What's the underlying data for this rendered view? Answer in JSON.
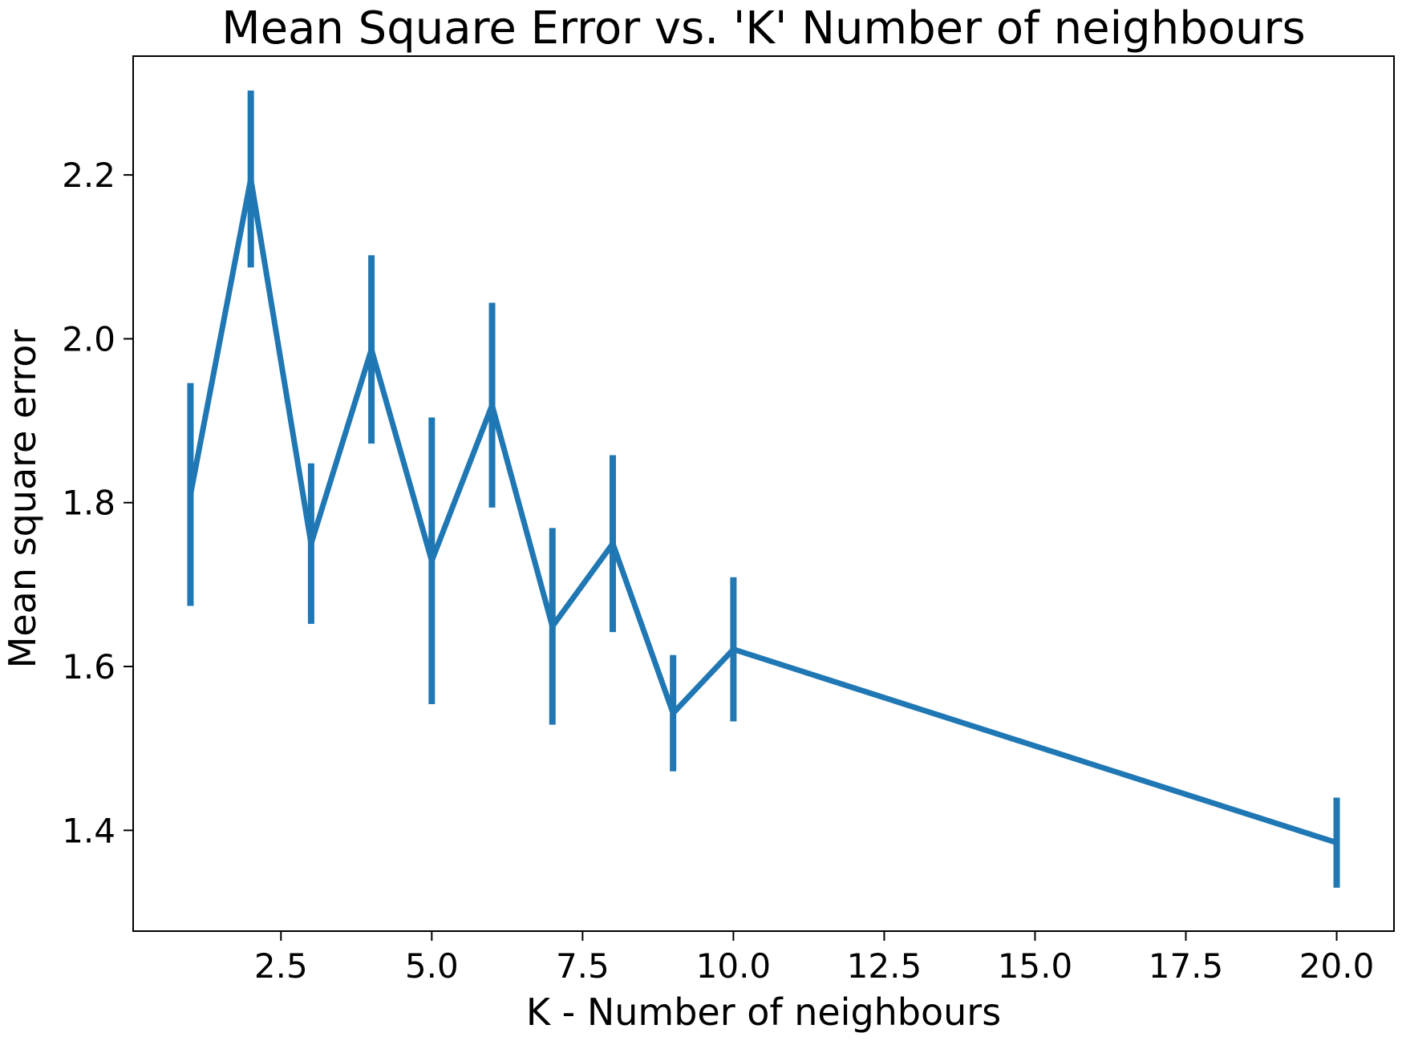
{
  "chart_data": {
    "type": "line",
    "title": "Mean Square Error vs. 'K' Number of neighbours",
    "xlabel": "K - Number of neighbours",
    "ylabel": "Mean square error",
    "xlim": [
      0.05,
      20.95
    ],
    "ylim": [
      1.277,
      2.345
    ],
    "xticks": [
      2.5,
      5.0,
      7.5,
      10.0,
      12.5,
      15.0,
      17.5,
      20.0
    ],
    "xtick_labels": [
      "2.5",
      "5.0",
      "7.5",
      "10.0",
      "12.5",
      "15.0",
      "17.5",
      "20.0"
    ],
    "yticks": [
      1.4,
      1.6,
      1.8,
      2.0,
      2.2
    ],
    "ytick_labels": [
      "1.4",
      "1.6",
      "1.8",
      "2.0",
      "2.2"
    ],
    "grid": false,
    "legend": "none",
    "series": [
      {
        "color": "#1f77b4",
        "x": [
          1,
          2,
          3,
          4,
          5,
          6,
          7,
          8,
          9,
          10,
          20
        ],
        "y": [
          1.81,
          2.195,
          1.75,
          1.987,
          1.729,
          1.919,
          1.649,
          1.75,
          1.543,
          1.621,
          1.385
        ],
        "yerr": [
          0.136,
          0.108,
          0.098,
          0.115,
          0.175,
          0.125,
          0.12,
          0.108,
          0.071,
          0.088,
          0.055
        ]
      }
    ]
  }
}
